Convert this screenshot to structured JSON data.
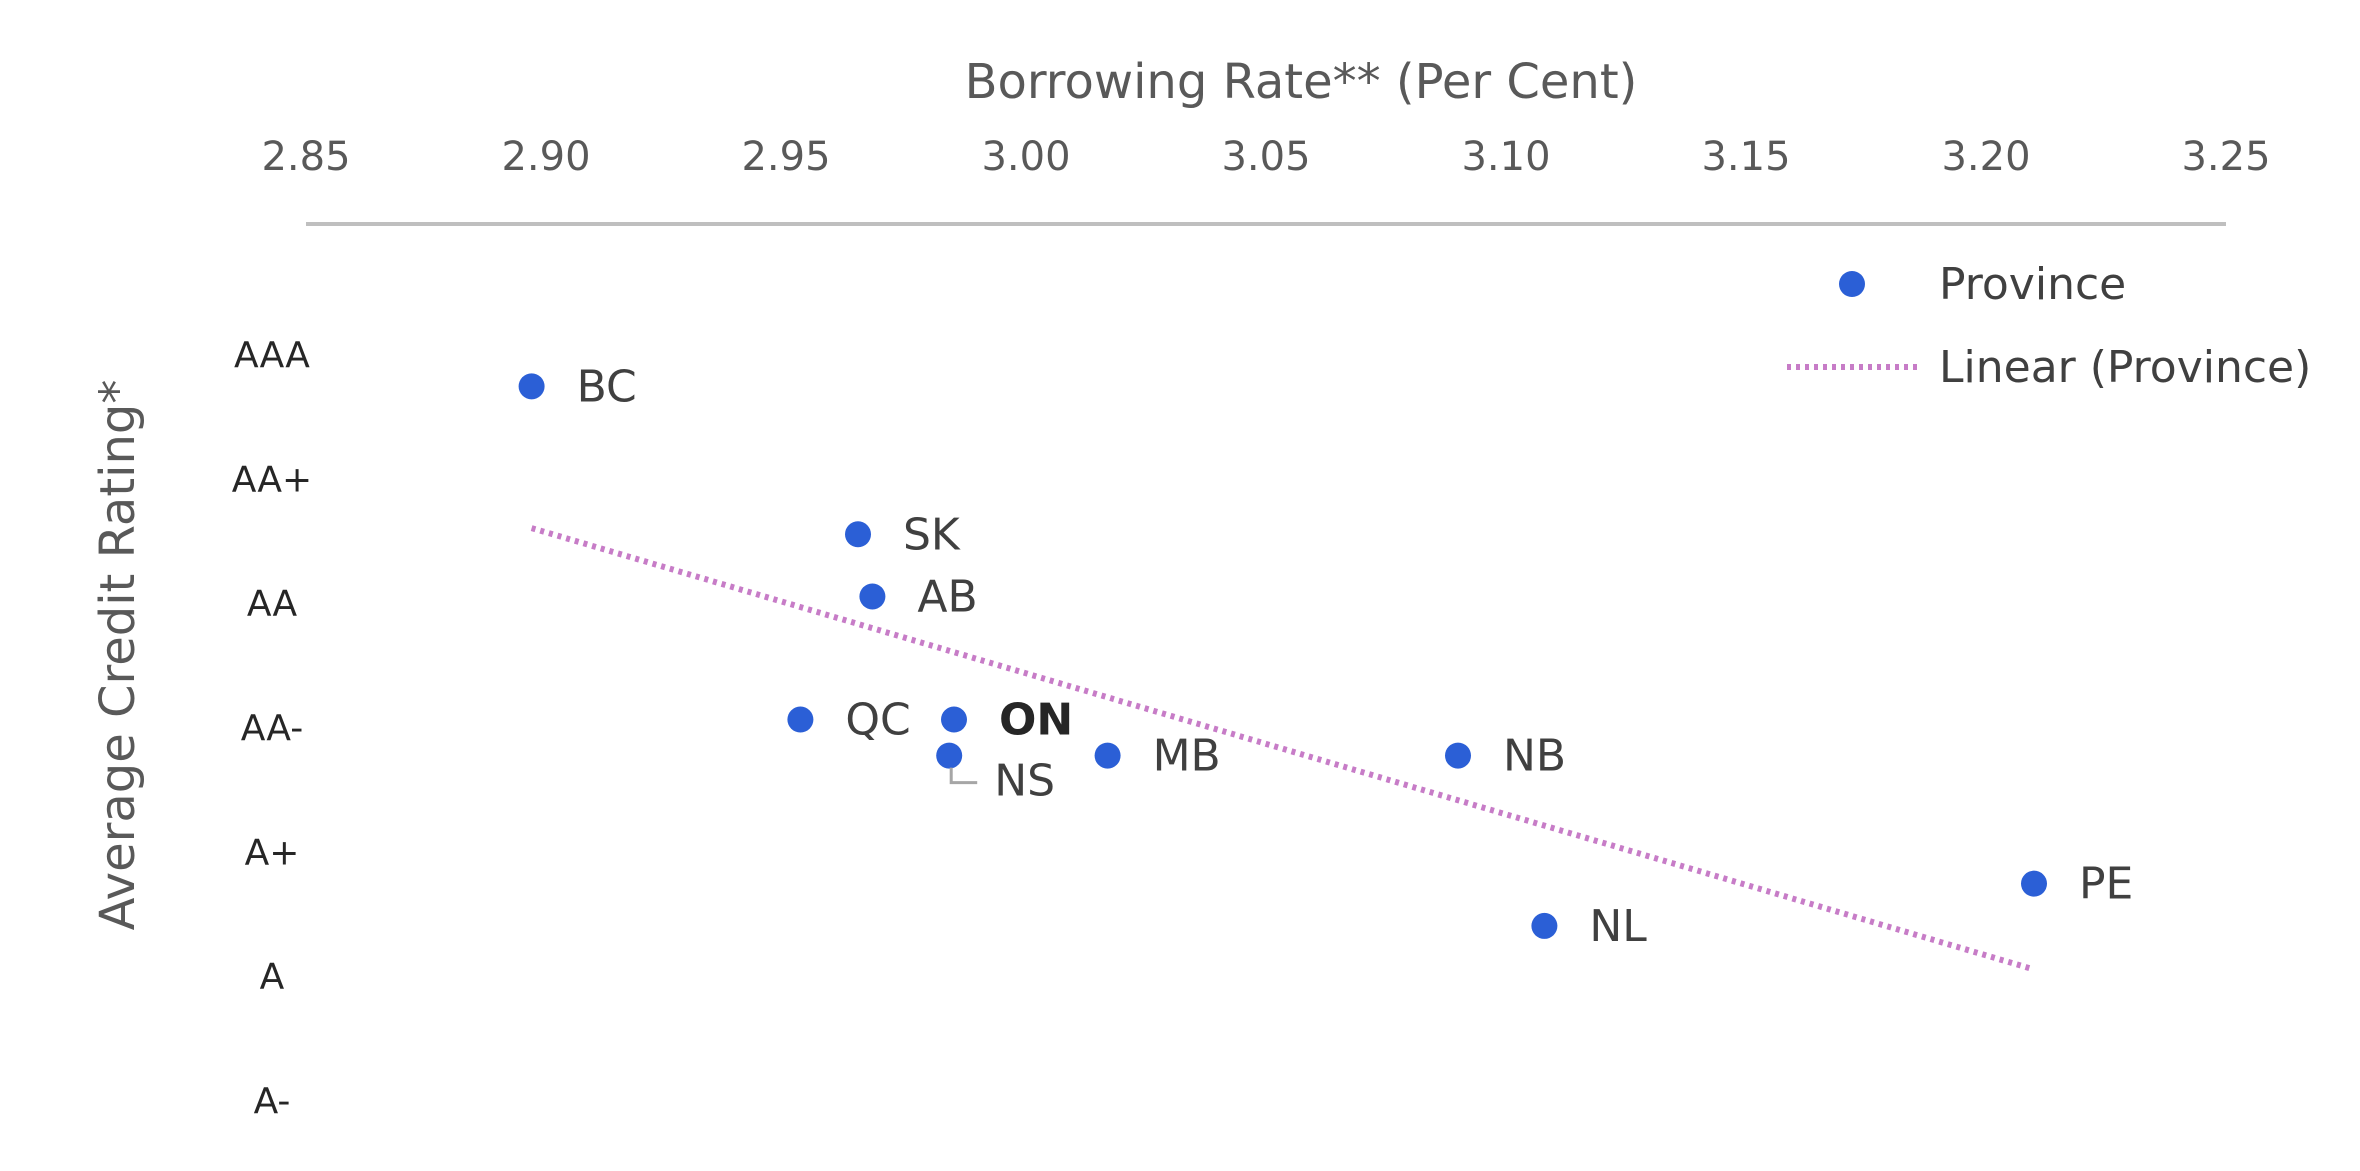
{
  "chart_data": {
    "type": "scatter",
    "xlabel": "Borrowing Rate** (Per Cent)",
    "ylabel": "Average Credit Rating*",
    "xlim": [
      2.85,
      3.25
    ],
    "x_ticks": [
      "2.85",
      "2.90",
      "2.95",
      "3.00",
      "3.05",
      "3.10",
      "3.15",
      "3.20",
      "3.25"
    ],
    "x_axis_position": "top",
    "y_categories": [
      "A-",
      "A",
      "A+",
      "AA-",
      "AA",
      "AA+",
      "AAA"
    ],
    "y_scale": [
      1,
      7
    ],
    "grid": false,
    "legend_position": "top-right",
    "series": [
      {
        "name": "Province",
        "kind": "points",
        "color": "#2B5FD6",
        "points": [
          {
            "label": "BC",
            "x": 2.897,
            "y": 6.74,
            "bold": false
          },
          {
            "label": "SK",
            "x": 2.965,
            "y": 5.55,
            "bold": false
          },
          {
            "label": "AB",
            "x": 2.968,
            "y": 5.05,
            "bold": false
          },
          {
            "label": "QC",
            "x": 2.953,
            "y": 4.06,
            "bold": false
          },
          {
            "label": "ON",
            "x": 2.985,
            "y": 4.06,
            "bold": true
          },
          {
            "label": "NS",
            "x": 2.984,
            "y": 3.77,
            "bold": false,
            "leader_line": true
          },
          {
            "label": "MB",
            "x": 3.017,
            "y": 3.77,
            "bold": false
          },
          {
            "label": "NB",
            "x": 3.09,
            "y": 3.77,
            "bold": false
          },
          {
            "label": "PE",
            "x": 3.21,
            "y": 2.74,
            "bold": false
          },
          {
            "label": "NL",
            "x": 3.108,
            "y": 2.4,
            "bold": false
          }
        ]
      },
      {
        "name": "Linear (Province)",
        "kind": "trendline",
        "color": "#C77CC7",
        "style": "dotted",
        "start": {
          "x": 2.897,
          "y": 5.6
        },
        "end": {
          "x": 3.21,
          "y": 2.05
        }
      }
    ]
  }
}
